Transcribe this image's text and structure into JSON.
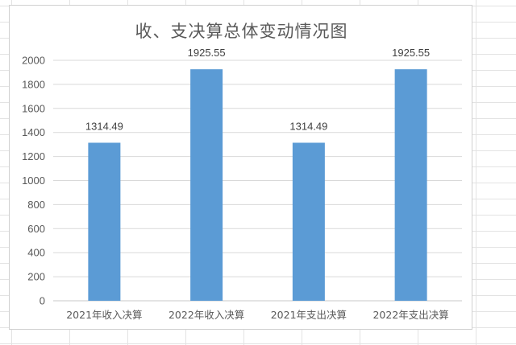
{
  "chart_data": {
    "type": "bar",
    "title": "收、支决算总体变动情况图",
    "categories": [
      "2021年收入决算",
      "2022年收入决算",
      "2021年支出决算",
      "2022年支出决算"
    ],
    "values": [
      1314.49,
      1925.55,
      1314.49,
      1925.55
    ],
    "data_labels": [
      "1314.49",
      "1925.55",
      "1314.49",
      "1925.55"
    ],
    "ylim": [
      0,
      2000
    ],
    "yticks": [
      0,
      200,
      400,
      600,
      800,
      1000,
      1200,
      1400,
      1600,
      1800,
      2000
    ],
    "xlabel": "",
    "ylabel": "",
    "grid": true,
    "legend": "none",
    "bar_color": "#5b9bd5"
  }
}
